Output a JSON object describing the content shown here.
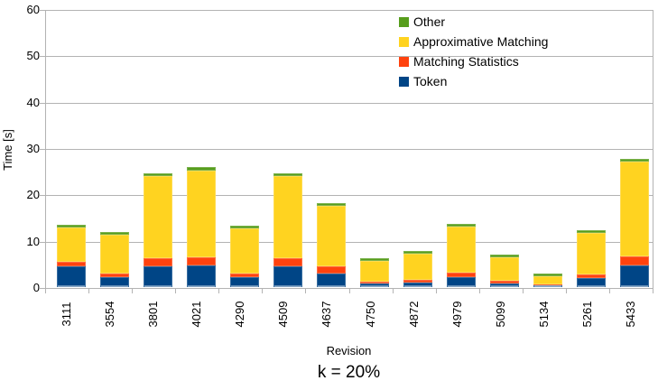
{
  "chart_data": {
    "type": "bar",
    "stacked": true,
    "subtitle": "k = 20%",
    "xlabel": "Revision",
    "ylabel": "Time [s]",
    "ylim": [
      0,
      60
    ],
    "yticks": [
      0,
      10,
      20,
      30,
      40,
      50,
      60
    ],
    "grid": true,
    "categories": [
      "3111",
      "3554",
      "3801",
      "4021",
      "4290",
      "4509",
      "4637",
      "4750",
      "4872",
      "4979",
      "5099",
      "5134",
      "5261",
      "5433"
    ],
    "series": [
      {
        "name": "Token",
        "color": "#004586",
        "values": [
          4.4,
          2.2,
          4.5,
          4.6,
          2.1,
          4.5,
          3.0,
          0.7,
          0.9,
          2.2,
          0.8,
          0.3,
          1.9,
          4.7
        ]
      },
      {
        "name": "Matching Statistics",
        "color": "#FF420E",
        "values": [
          1.0,
          0.7,
          1.8,
          1.9,
          0.9,
          1.7,
          1.5,
          0.5,
          0.6,
          1.0,
          0.6,
          0.2,
          0.9,
          2.0
        ]
      },
      {
        "name": "Approximative Matching",
        "color": "#FFD320",
        "values": [
          7.4,
          8.4,
          17.7,
          18.7,
          9.6,
          17.8,
          13.0,
          4.5,
          5.7,
          9.9,
          5.1,
          1.9,
          8.9,
          20.3
        ]
      },
      {
        "name": "Other",
        "color": "#579D1C",
        "values": [
          0.6,
          0.6,
          0.6,
          0.7,
          0.6,
          0.6,
          0.6,
          0.6,
          0.6,
          0.6,
          0.6,
          0.6,
          0.6,
          0.7
        ]
      }
    ],
    "legend": {
      "position": "top-right",
      "entries": [
        "Other",
        "Approximative Matching",
        "Matching Statistics",
        "Token"
      ]
    },
    "colors": {
      "axis_and_grid": "#b3b3b3",
      "text": "#000000",
      "background": "#ffffff"
    }
  }
}
